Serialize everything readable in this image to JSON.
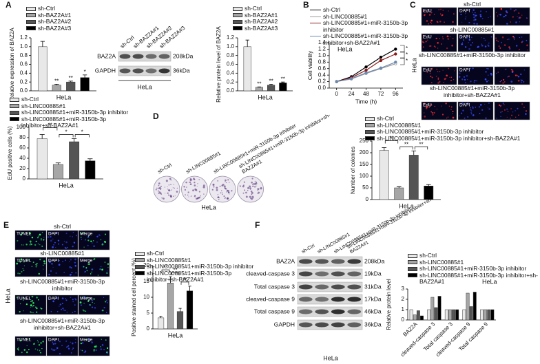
{
  "panel_letters": [
    "A",
    "B",
    "C",
    "D",
    "E",
    "F"
  ],
  "blot_A": {
    "lanes": [
      "sh-Ctrl",
      "sh-BAZ2A#1",
      "sh-BAZ2A#2",
      "sh-BAZ2A#3"
    ],
    "rows": [
      {
        "protein": "BAZ2A",
        "size": "208kDa"
      },
      {
        "protein": "GAPDH",
        "size": "36kDa"
      }
    ],
    "cell_line": "HeLa"
  },
  "edu_images": {
    "groups": [
      "sh-Ctrl",
      "sh-LINC00885#1",
      "sh-LINC00885#1+miR-3150b-3p inhibitor",
      "sh-LINC00885#1+miR-3150b-3p inhibitor+sh-BAZ2A#1"
    ],
    "channels": [
      "EdU",
      "DAPI"
    ],
    "cell_line": "HeLa"
  },
  "colony_images": {
    "groups": [
      "sh-Ctrl",
      "sh-LINC00885#1",
      "sh-LINC00885#1+miR-3150b-3p inhibitor",
      "sh-LINC00885#1+miR-3150b-3p inhibitor+sh-BAZ2A#1"
    ],
    "cell_line": "HeLa"
  },
  "tunel_images": {
    "groups": [
      "sh-Ctrl",
      "sh-LINC00885#1",
      "sh-LINC00885#1+miR-3150b-3p inhibitor",
      "sh-LINC00885#1+miR-3150b-3p inhibitor+sh-BAZ2A#1"
    ],
    "channels": [
      "TUNEL",
      "DAPI",
      "Merge"
    ],
    "cell_line": "HeLa"
  },
  "blot_F": {
    "lanes": [
      "sh-Ctrl",
      "sh-LINC00885#1",
      "sh-LINC00885#1+miR-3150b-3p inhibitor",
      "sh-LINC00885#1+miR-3150b-3p inhibitor+sh-BAZ2A#1"
    ],
    "rows": [
      {
        "protein": "BAZ2A",
        "size": "208kDa"
      },
      {
        "protein": "cleaved-caspase 3",
        "size": "19kDa"
      },
      {
        "protein": "Total caspase 3",
        "size": "31kDa"
      },
      {
        "protein": "cleaved-caspase 9",
        "size": "17kDa"
      },
      {
        "protein": "Total caspase 9",
        "size": "46kDa"
      },
      {
        "protein": "GAPDH",
        "size": "36kDa"
      }
    ],
    "cell_line": "HeLa"
  },
  "chart_data": [
    {
      "type": "bar",
      "ylabel": "Relative expression of BAZ2A",
      "categories": [
        "HeLa"
      ],
      "ylim": [
        0,
        1.2
      ],
      "yticks": [
        {
          "value": 0,
          "label": "0.0"
        },
        0.2,
        0.4,
        0.6,
        0.8,
        {
          "value": 1,
          "label": "1.0"
        },
        1.2
      ],
      "series": [
        {
          "name": "sh-Ctrl",
          "color": "#e8e8e8",
          "values": [
            1.0
          ],
          "errors": [
            0.12
          ]
        },
        {
          "name": "sh-BAZ2A#1",
          "color": "#a6a6a6",
          "values": [
            0.13
          ],
          "errors": [
            0.02
          ],
          "annotation": "**"
        },
        {
          "name": "sh-BAZ2A#2",
          "color": "#555555",
          "values": [
            0.2
          ],
          "errors": [
            0.02
          ],
          "annotation": "**"
        },
        {
          "name": "sh-BAZ2A#3",
          "color": "#000000",
          "values": [
            0.3
          ],
          "errors": [
            0.06
          ],
          "annotation": "*"
        }
      ]
    },
    {
      "type": "bar",
      "ylabel": "Relative protein level of BAZ2A",
      "categories": [
        "HeLa"
      ],
      "ylim": [
        0,
        1.2
      ],
      "yticks": [
        {
          "value": 0,
          "label": "0.0"
        },
        0.2,
        0.4,
        0.6,
        0.8,
        {
          "value": 1,
          "label": "1.0"
        },
        1.2
      ],
      "series": [
        {
          "name": "sh-Ctrl",
          "color": "#e8e8e8",
          "values": [
            1.0
          ],
          "errors": [
            0.15
          ]
        },
        {
          "name": "sh-BAZ2A#1",
          "color": "#a6a6a6",
          "values": [
            0.08
          ],
          "errors": [
            0.01
          ],
          "annotation": "**"
        },
        {
          "name": "sh-BAZ2A#2",
          "color": "#555555",
          "values": [
            0.13
          ],
          "errors": [
            0.02
          ],
          "annotation": "**"
        },
        {
          "name": "sh-BAZ2A#3",
          "color": "#000000",
          "values": [
            0.18
          ],
          "errors": [
            0.02
          ],
          "annotation": "**"
        }
      ]
    },
    {
      "type": "line",
      "ylabel": "Cell viability",
      "xlabel": "Time (h)",
      "annotation": "HeLa",
      "x": [
        0,
        24,
        48,
        72,
        96
      ],
      "xlim": [
        -12,
        108
      ],
      "xticks": [
        0,
        24,
        48,
        72,
        96
      ],
      "ylim": [
        0,
        1.4
      ],
      "yticks": [
        {
          "value": 0,
          "label": "0.0"
        },
        0.2,
        0.4,
        0.6,
        0.8,
        {
          "value": 1,
          "label": "1.0"
        },
        1.2,
        1.4
      ],
      "significance": [
        "*",
        "*",
        "*"
      ],
      "series": [
        {
          "name": "sh-Ctrl",
          "color": "#000000",
          "values": [
            0.2,
            0.35,
            0.65,
            0.95,
            1.2
          ]
        },
        {
          "name": "sh-LINC00885#1",
          "color": "#9a9a9a",
          "values": [
            0.2,
            0.28,
            0.45,
            0.6,
            0.75
          ]
        },
        {
          "name": "sh-LINC00885#1+miR-3150b-3p inhibitor",
          "color": "#8b1a1a",
          "values": [
            0.2,
            0.32,
            0.55,
            0.85,
            1.05
          ]
        },
        {
          "name": "sh-LINC00885#1+miR-3150b-3p inhibitor+sh-BAZ2A#1",
          "color": "#6a8ab0",
          "values": [
            0.2,
            0.29,
            0.47,
            0.62,
            0.8
          ]
        }
      ]
    },
    {
      "type": "bar",
      "ylabel": "EdU positive cells (%)",
      "categories": [
        "HeLa"
      ],
      "ylim": [
        0,
        100
      ],
      "yticks": [
        0,
        20,
        40,
        60,
        80,
        100
      ],
      "significance": [
        "**",
        "*",
        "*"
      ],
      "series": [
        {
          "name": "sh-Ctrl",
          "color": "#e8e8e8",
          "values": [
            78
          ],
          "errors": [
            8
          ]
        },
        {
          "name": "sh-LINC00885#1",
          "color": "#a6a6a6",
          "values": [
            28
          ],
          "errors": [
            3
          ]
        },
        {
          "name": "sh-LINC00885#1+miR-3150b-3p inhibitor",
          "color": "#555555",
          "values": [
            72
          ],
          "errors": [
            6
          ]
        },
        {
          "name": "sh-LINC00885#1+miR-3150b-3p inhibitor+sh-BAZ2A#1",
          "color": "#000000",
          "values": [
            35
          ],
          "errors": [
            4
          ]
        }
      ]
    },
    {
      "type": "bar",
      "ylabel": "Number of colonies",
      "categories": [
        "HeLa"
      ],
      "ylim": [
        0,
        250
      ],
      "yticks": [
        0,
        50,
        100,
        150,
        200,
        250
      ],
      "significance": [
        "**",
        "**",
        "**"
      ],
      "series": [
        {
          "name": "sh-Ctrl",
          "color": "#e8e8e8",
          "values": [
            210
          ],
          "errors": [
            12
          ]
        },
        {
          "name": "sh-LINC00885#1",
          "color": "#a6a6a6",
          "values": [
            50
          ],
          "errors": [
            5
          ]
        },
        {
          "name": "sh-LINC00885#1+miR-3150b-3p inhibitor",
          "color": "#555555",
          "values": [
            190
          ],
          "errors": [
            18
          ]
        },
        {
          "name": "sh-LINC00885#1+miR-3150b-3p inhibitor+sh-BAZ2A#1",
          "color": "#000000",
          "values": [
            58
          ],
          "errors": [
            6
          ]
        }
      ]
    },
    {
      "type": "bar",
      "ylabel": "Positive stained cell percent (%)",
      "categories": [
        "HeLa"
      ],
      "ylim": [
        0,
        20
      ],
      "yticks": [
        0,
        5,
        10,
        15,
        20
      ],
      "significance": [
        "**",
        "**",
        "**"
      ],
      "series": [
        {
          "name": "sh-Ctrl",
          "color": "#e8e8e8",
          "values": [
            3.5
          ],
          "errors": [
            0.5
          ]
        },
        {
          "name": "sh-LINC00885#1",
          "color": "#a6a6a6",
          "values": [
            14.5
          ],
          "errors": [
            2
          ]
        },
        {
          "name": "sh-LINC00885#1+miR-3150b-3p inhibitor",
          "color": "#555555",
          "values": [
            5.5
          ],
          "errors": [
            1
          ]
        },
        {
          "name": "sh-LINC00885#1+miR-3150b-3p inhibitor+sh-BAZ2A#1",
          "color": "#000000",
          "values": [
            12
          ],
          "errors": [
            1.5
          ]
        }
      ]
    },
    {
      "type": "bar",
      "ylabel": "Relative protein level",
      "annotation": "HeLa",
      "categories": [
        "BAZ2A",
        "cleaved-caspase 3",
        "Total caspase 3",
        "cleaved-caspase 9",
        "Total caspase 9"
      ],
      "ylim": [
        0,
        3
      ],
      "yticks": [
        0,
        1,
        2,
        3
      ],
      "series": [
        {
          "name": "sh-Ctrl",
          "color": "#e8e8e8",
          "values": [
            1,
            1,
            1,
            1,
            1
          ]
        },
        {
          "name": "sh-LINC00885#1",
          "color": "#a6a6a6",
          "values": [
            0.5,
            2.2,
            1,
            2.6,
            1
          ]
        },
        {
          "name": "sh-LINC00885#1+miR-3150b-3p inhibitor",
          "color": "#555555",
          "values": [
            0.9,
            1.2,
            1,
            1.3,
            1
          ]
        },
        {
          "name": "sh-LINC00885#1+miR-3150b-3p inhibitor+sh-BAZ2A#1",
          "color": "#000000",
          "values": [
            0.4,
            2.3,
            1,
            2.7,
            1
          ]
        }
      ]
    }
  ]
}
